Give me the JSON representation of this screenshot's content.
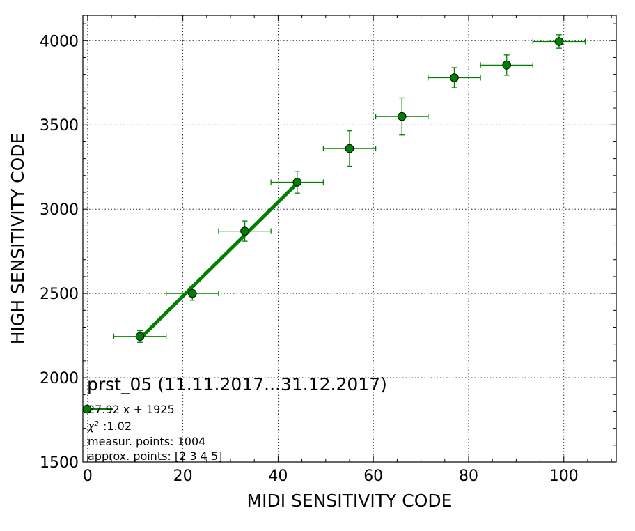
{
  "chart_data": {
    "type": "scatter",
    "xlabel": "MIDI SENSITIVITY CODE",
    "ylabel": "HIGH SENSITIVITY CODE",
    "xlim": [
      -1,
      111
    ],
    "ylim": [
      1500,
      4150
    ],
    "xticks": [
      0,
      20,
      40,
      60,
      80,
      100
    ],
    "yticks": [
      1500,
      2000,
      2500,
      3000,
      3500,
      4000
    ],
    "grid": true,
    "colors": {
      "series": "#008000",
      "marker_edge": "#000000",
      "fit": "#008000"
    },
    "series": [
      {
        "x": [
          11,
          22,
          33,
          44,
          55,
          66,
          77,
          88,
          99
        ],
        "y": [
          2245,
          2500,
          2870,
          3160,
          3360,
          3550,
          3780,
          3855,
          3995
        ],
        "xerr": [
          5.5,
          5.5,
          5.5,
          5.5,
          5.5,
          5.5,
          5.5,
          5.5,
          5.5
        ],
        "yerr": [
          35,
          40,
          60,
          65,
          105,
          110,
          60,
          60,
          40
        ]
      }
    ],
    "fit": {
      "x_range": [
        11,
        44
      ],
      "slope": 27.92,
      "intercept": 1925
    },
    "annotations": {
      "title": "prst_05 (11.11.2017...31.12.2017)",
      "legend_text": "27.92 x + 1925",
      "chi2_text": ":1.02",
      "measur_points": "measur. points: 1004",
      "approx_points": "approx. points: [2 3 4 5]"
    }
  }
}
